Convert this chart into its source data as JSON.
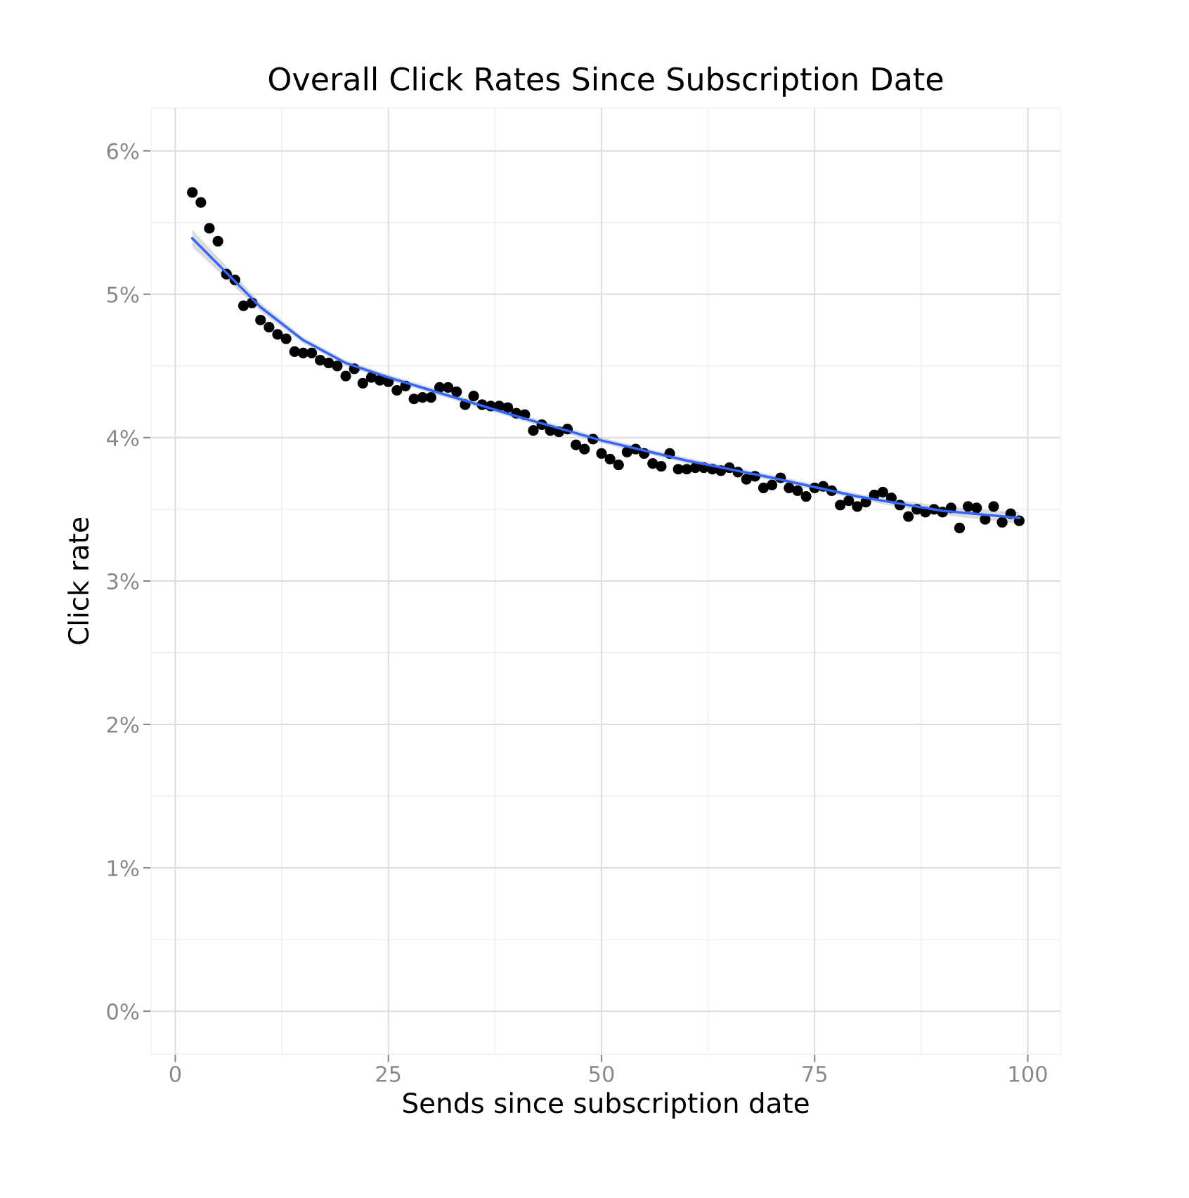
{
  "chart_data": {
    "type": "scatter",
    "title": "Overall Click Rates Since Subscription Date",
    "xlabel": "Sends since subscription date",
    "ylabel": "Click rate",
    "xlim": [
      -2.85,
      103.85
    ],
    "xticks": [
      0,
      25,
      50,
      75,
      100
    ],
    "ylim": [
      -0.3,
      6.3
    ],
    "yticks": [
      {
        "value": 0,
        "label": "0%"
      },
      {
        "value": 1,
        "label": "1%"
      },
      {
        "value": 2,
        "label": "2%"
      },
      {
        "value": 3,
        "label": "3%"
      },
      {
        "value": 4,
        "label": "4%"
      },
      {
        "value": 5,
        "label": "5%"
      },
      {
        "value": 6,
        "label": "6%"
      }
    ],
    "grid": true,
    "legend": false,
    "series": [
      {
        "marker": "circle",
        "color": "#000000",
        "x": [
          2,
          3,
          4,
          5,
          6,
          7,
          8,
          9,
          10,
          11,
          12,
          13,
          14,
          15,
          16,
          17,
          18,
          19,
          20,
          21,
          22,
          23,
          24,
          25,
          26,
          27,
          28,
          29,
          30,
          31,
          32,
          33,
          34,
          35,
          36,
          37,
          38,
          39,
          40,
          41,
          42,
          43,
          44,
          45,
          46,
          47,
          48,
          49,
          50,
          51,
          52,
          53,
          54,
          55,
          56,
          57,
          58,
          59,
          60,
          61,
          62,
          63,
          64,
          65,
          66,
          67,
          68,
          69,
          70,
          71,
          72,
          73,
          74,
          75,
          76,
          77,
          78,
          79,
          80,
          81,
          82,
          83,
          84,
          85,
          86,
          87,
          88,
          89,
          90,
          91,
          92,
          93,
          94,
          95,
          96,
          97,
          98,
          99
        ],
        "values": [
          5.71,
          5.64,
          5.46,
          5.37,
          5.14,
          5.1,
          4.92,
          4.94,
          4.82,
          4.77,
          4.72,
          4.69,
          4.6,
          4.59,
          4.59,
          4.54,
          4.52,
          4.5,
          4.43,
          4.48,
          4.38,
          4.42,
          4.4,
          4.39,
          4.33,
          4.36,
          4.27,
          4.28,
          4.28,
          4.35,
          4.35,
          4.32,
          4.23,
          4.29,
          4.23,
          4.22,
          4.22,
          4.21,
          4.17,
          4.16,
          4.05,
          4.09,
          4.05,
          4.04,
          4.06,
          3.95,
          3.92,
          3.99,
          3.89,
          3.85,
          3.81,
          3.9,
          3.92,
          3.89,
          3.82,
          3.8,
          3.89,
          3.78,
          3.78,
          3.79,
          3.79,
          3.78,
          3.77,
          3.79,
          3.76,
          3.71,
          3.73,
          3.65,
          3.67,
          3.72,
          3.65,
          3.63,
          3.59,
          3.65,
          3.66,
          3.63,
          3.53,
          3.56,
          3.52,
          3.55,
          3.6,
          3.62,
          3.58,
          3.53,
          3.45,
          3.5,
          3.48,
          3.5,
          3.48,
          3.51,
          3.37,
          3.52,
          3.51,
          3.43,
          3.52,
          3.41,
          3.47,
          3.42
        ]
      },
      {
        "type": "line",
        "marker": "none",
        "line_style": "solid",
        "color": "#3366ff",
        "x": [
          2,
          10,
          15,
          20,
          25,
          30,
          40,
          50,
          60,
          70,
          80,
          90,
          99
        ],
        "values": [
          5.39,
          4.91,
          4.68,
          4.52,
          4.42,
          4.33,
          4.15,
          3.98,
          3.84,
          3.72,
          3.59,
          3.49,
          3.44
        ],
        "lower": [
          5.33,
          4.88,
          4.66,
          4.5,
          4.4,
          4.31,
          4.13,
          3.96,
          3.82,
          3.7,
          3.57,
          3.46,
          3.4
        ],
        "upper": [
          5.45,
          4.94,
          4.7,
          4.54,
          4.44,
          4.35,
          4.17,
          4.0,
          3.86,
          3.74,
          3.61,
          3.52,
          3.48
        ]
      }
    ]
  }
}
